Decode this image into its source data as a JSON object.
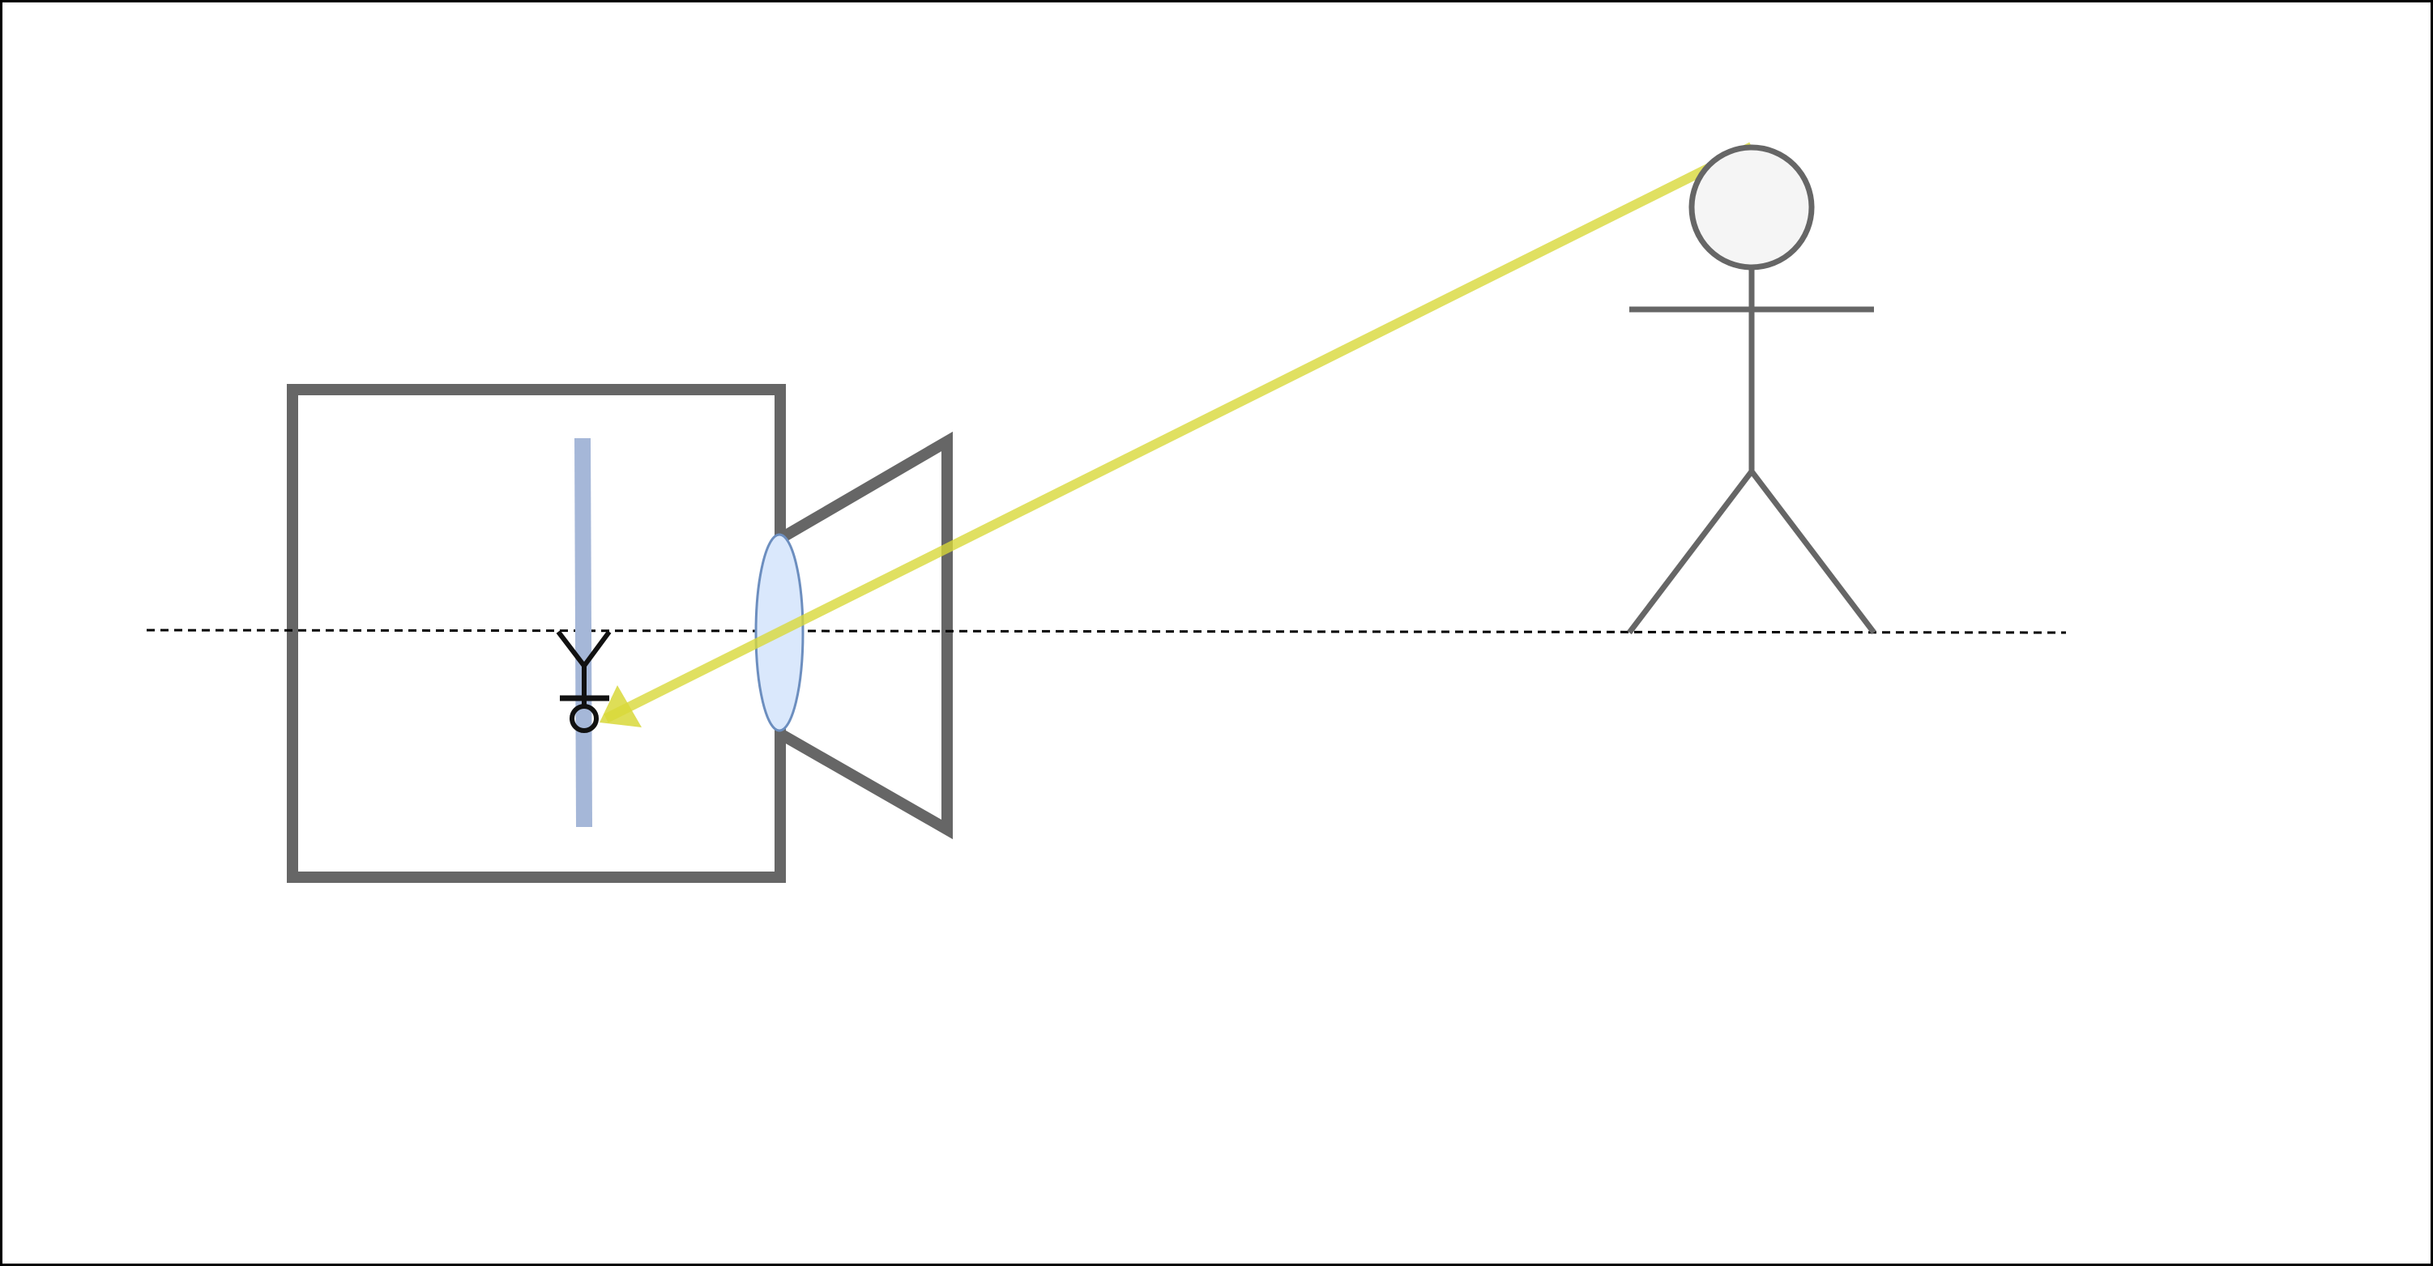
{
  "diagram": {
    "kind": "camera-projection",
    "elements": [
      "camera-body",
      "camera-lens-hood",
      "lens",
      "image-sensor",
      "optical-axis",
      "subject-stick-figure",
      "light-ray",
      "projected-image-inverted-figure"
    ],
    "colors": {
      "frame_stroke": "#000000",
      "camera_stroke": "#666666",
      "lens_fill": "#dae8fc",
      "lens_stroke": "#6c8ebf",
      "sensor": "#a5b7d8",
      "ray": "#d8d83a",
      "figure_stroke": "#666666",
      "head_fill": "#f5f5f5",
      "image_figure_stroke": "#111111",
      "axis_stroke": "#000000"
    },
    "icons": {
      "subject": "person-icon",
      "image": "inverted-person-icon"
    }
  }
}
